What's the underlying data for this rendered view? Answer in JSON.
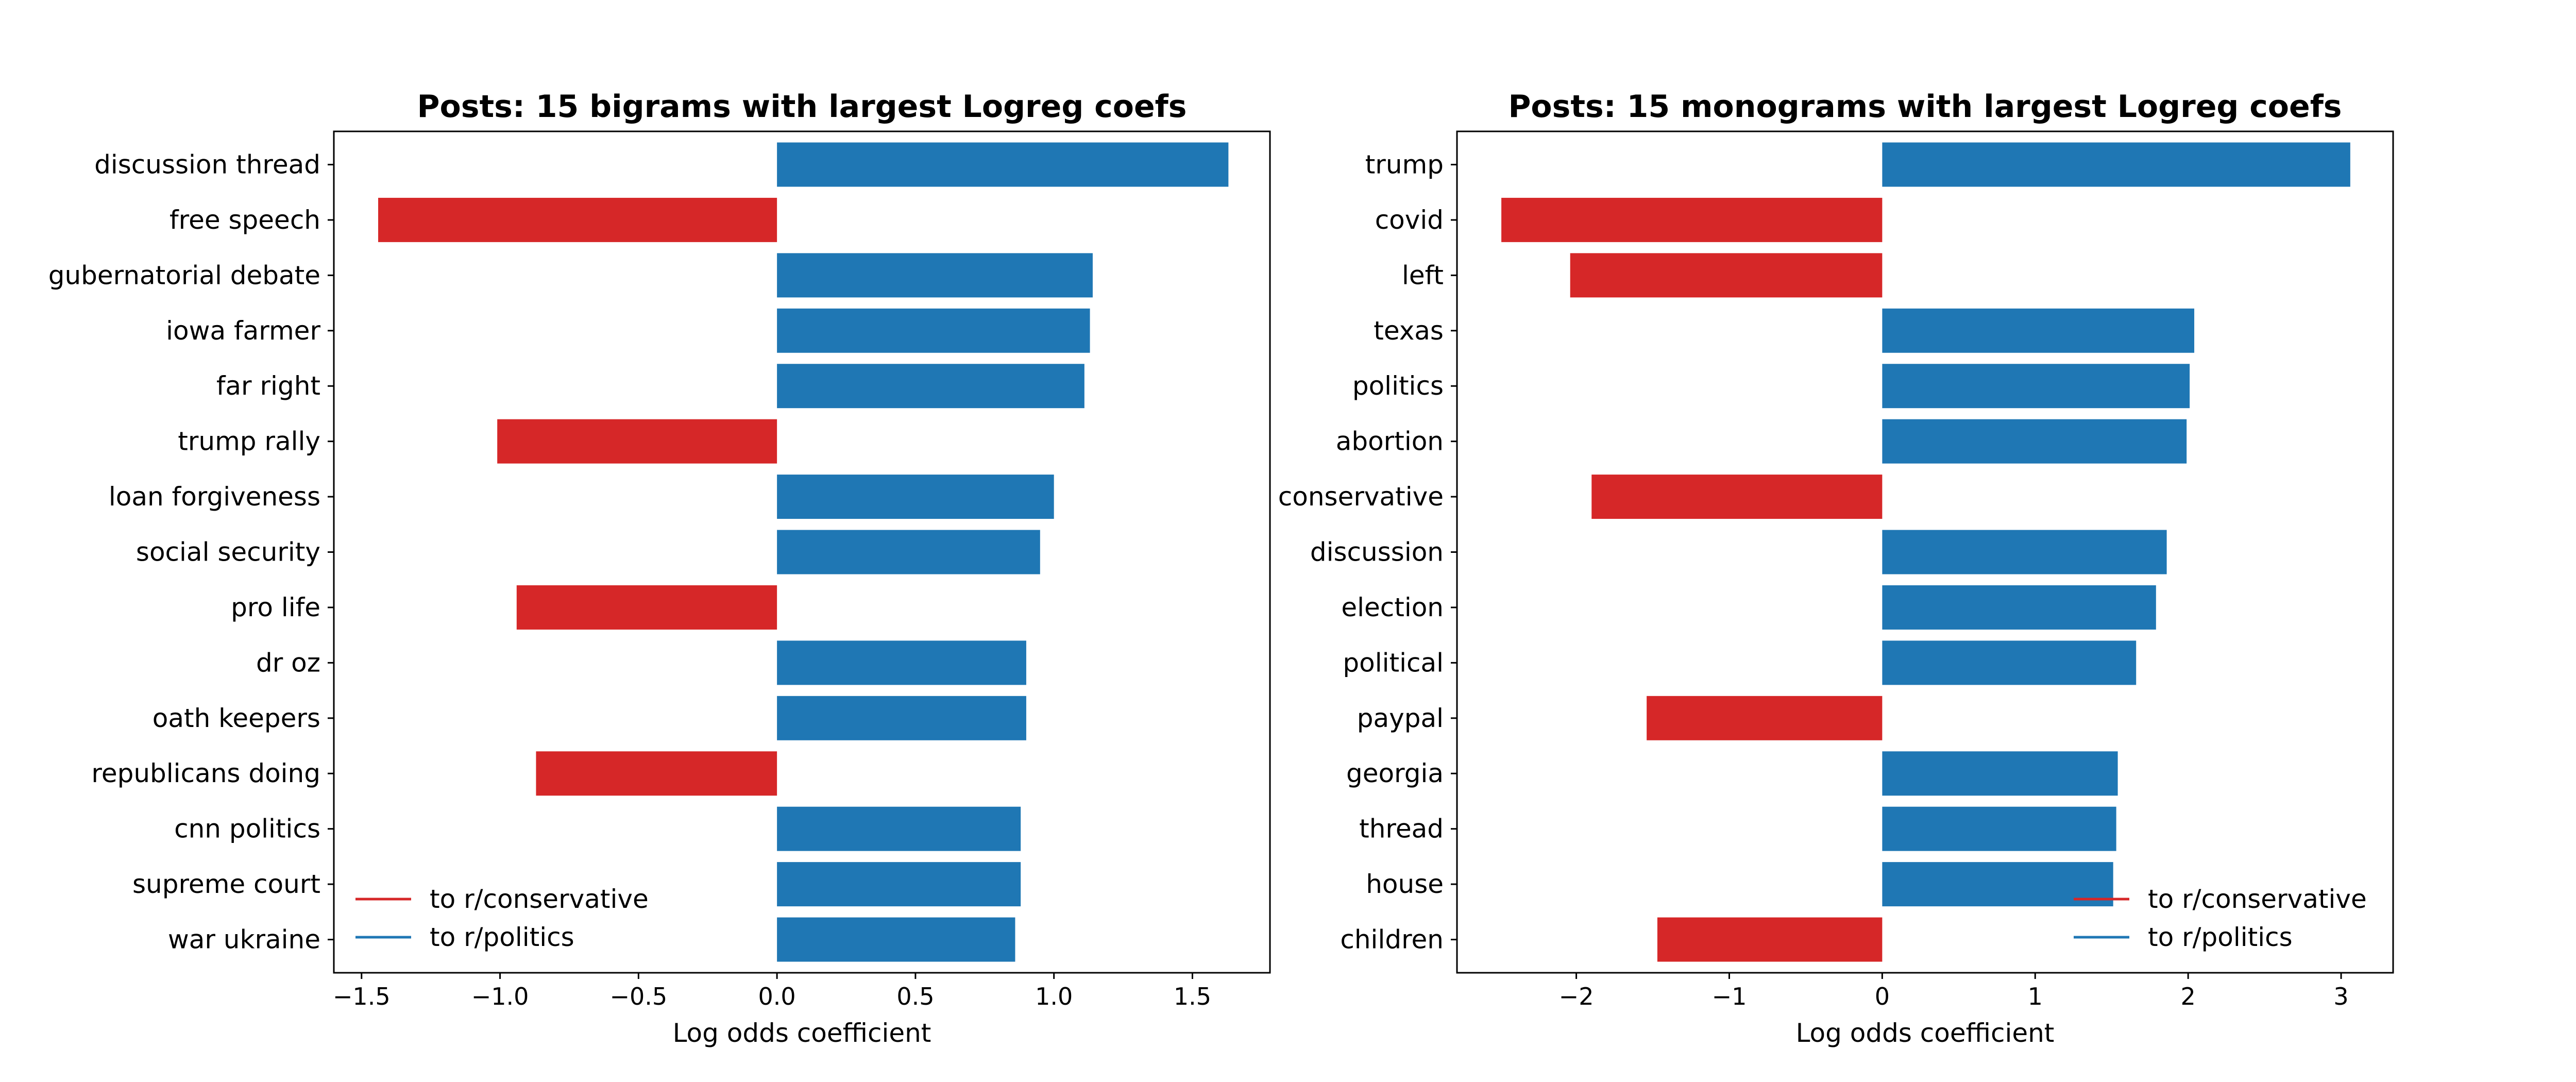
{
  "colors": {
    "conservative": "#d62728",
    "politics": "#1f77b4"
  },
  "chart_data": [
    {
      "type": "bar",
      "orientation": "horizontal",
      "title": "Posts: 15 bigrams with largest Logreg coefs",
      "xlabel": "Log odds coefficient",
      "ylabel": "",
      "xlim": [
        -1.6,
        1.78
      ],
      "xticks": [
        -1.5,
        -1.0,
        -0.5,
        0.0,
        0.5,
        1.0,
        1.5
      ],
      "xtick_labels": [
        "−1.5",
        "−1.0",
        "−0.5",
        "0.0",
        "0.5",
        "1.0",
        "1.5"
      ],
      "categories": [
        "discussion thread",
        "free speech",
        "gubernatorial debate",
        "iowa farmer",
        "far right",
        "trump rally",
        "loan forgiveness",
        "social security",
        "pro life",
        "dr oz",
        "oath keepers",
        "republicans doing",
        "cnn politics",
        "supreme court",
        "war ukraine"
      ],
      "values": [
        1.63,
        -1.44,
        1.14,
        1.13,
        1.11,
        -1.01,
        1.0,
        0.95,
        -0.94,
        0.9,
        0.9,
        -0.87,
        0.88,
        0.88,
        0.86
      ],
      "legend": {
        "position": "lower left",
        "entries": [
          "to r/conservative",
          "to r/politics"
        ]
      },
      "grid": false
    },
    {
      "type": "bar",
      "orientation": "horizontal",
      "title": "Posts: 15 monograms with largest Logreg coefs",
      "xlabel": "Log odds coefficient",
      "ylabel": "",
      "xlim": [
        -2.78,
        3.34
      ],
      "xticks": [
        -2,
        -1,
        0,
        1,
        2,
        3
      ],
      "xtick_labels": [
        "−2",
        "−1",
        "0",
        "1",
        "2",
        "3"
      ],
      "categories": [
        "trump",
        "covid",
        "left",
        "texas",
        "politics",
        "abortion",
        "conservative",
        "discussion",
        "election",
        "political",
        "paypal",
        "georgia",
        "thread",
        "house",
        "children"
      ],
      "values": [
        3.06,
        -2.49,
        -2.04,
        2.04,
        2.01,
        1.99,
        -1.9,
        1.86,
        1.79,
        1.66,
        -1.54,
        1.54,
        1.53,
        1.51,
        -1.47
      ],
      "legend": {
        "position": "lower right",
        "entries": [
          "to r/conservative",
          "to r/politics"
        ]
      },
      "grid": false
    }
  ]
}
